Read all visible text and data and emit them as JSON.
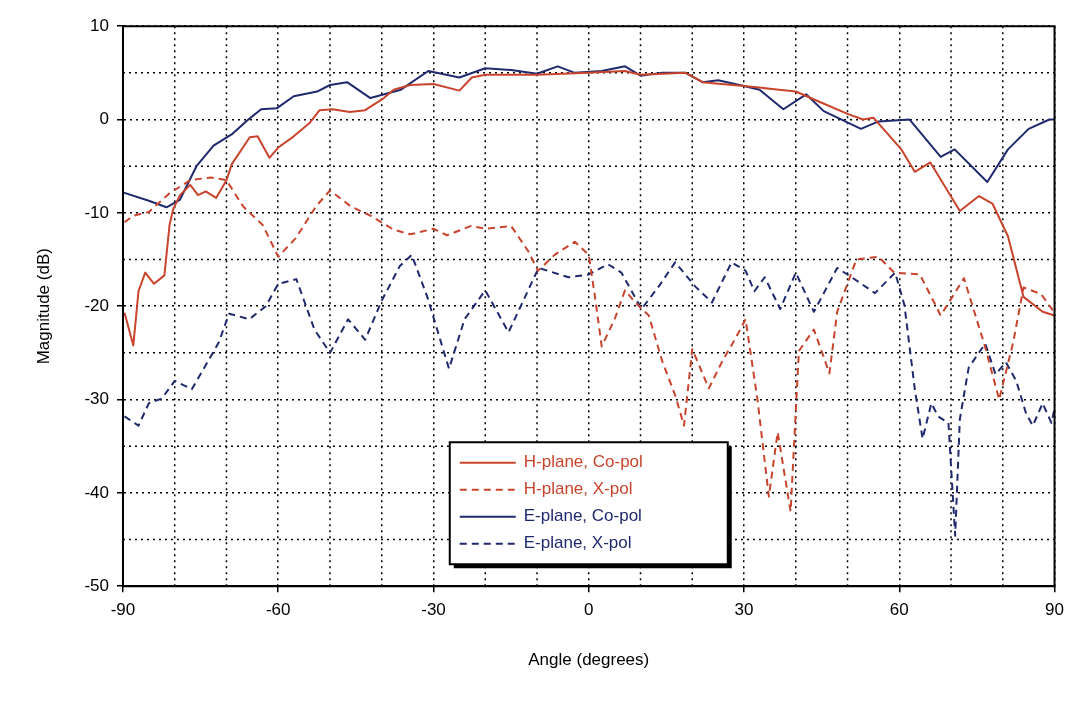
{
  "chart_data": {
    "type": "line",
    "xlabel": "Angle (degrees)",
    "ylabel": "Magnitude (dB)",
    "xlim": [
      -90,
      90
    ],
    "ylim": [
      -50,
      10
    ],
    "xticks": [
      -90,
      -60,
      -30,
      0,
      30,
      60,
      90
    ],
    "yticks": [
      -50,
      -40,
      -30,
      -20,
      -10,
      0,
      10
    ],
    "grid": true,
    "legend": "bottom",
    "series": [
      {
        "name": "H-plane, Co-pol",
        "color": "#c8442c",
        "line_style": "solid",
        "x": [
          -89.7,
          -88,
          -87,
          -85.7,
          -84,
          -82,
          -81,
          -80.3,
          -79,
          -77,
          -75.5,
          -74,
          -72,
          -70,
          -69,
          -65.5,
          -64,
          -61.7,
          -60,
          -57,
          -54,
          -52,
          -49.5,
          -46.2,
          -43.2,
          -39.6,
          -37.7,
          -34.5,
          -30,
          -25,
          -22.6,
          -20,
          -10,
          0,
          7,
          10,
          18.7,
          22,
          25.6,
          30,
          35,
          40,
          45,
          50,
          53,
          55,
          60.4,
          63,
          66,
          71.7,
          75.4,
          78,
          81,
          84,
          87.7,
          90
        ],
        "values": [
          -20.7,
          -24.2,
          -18.4,
          -16.4,
          -17.6,
          -16.7,
          -11.3,
          -9.6,
          -8.1,
          -7,
          -8.1,
          -7.7,
          -8.4,
          -6.5,
          -4.8,
          -1.9,
          -1.8,
          -4.1,
          -3,
          -1.8,
          -0.4,
          1,
          1.1,
          0.8,
          1,
          2.3,
          3.2,
          3.7,
          3.8,
          3.1,
          4.5,
          4.8,
          4.8,
          5,
          5.2,
          4.8,
          5,
          4,
          3.8,
          3.6,
          3.3,
          3,
          1.8,
          0.6,
          0,
          0.2,
          -3.2,
          -5.6,
          -4.6,
          -9.8,
          -8.2,
          -9,
          -12.5,
          -19,
          -20.6,
          -21
        ]
      },
      {
        "name": "H-plane, X-pol",
        "color": "#c8442c",
        "line_style": "dashed",
        "x": [
          -89.7,
          -88,
          -85,
          -81,
          -77,
          -73,
          -70,
          -66.8,
          -63,
          -60,
          -56.6,
          -52.7,
          -50,
          -46,
          -42.2,
          -37.7,
          -34.5,
          -30,
          -27.4,
          -22.7,
          -20,
          -15,
          -11.7,
          -9.8,
          -6.6,
          -2.7,
          0,
          1.2,
          2.5,
          5,
          7,
          9,
          11.6,
          14.2,
          16.8,
          18.4,
          20,
          23.2,
          25.8,
          28.4,
          30.3,
          32.6,
          34.8,
          36.5,
          39,
          40.6,
          43.5,
          46.5,
          48,
          51.7,
          56,
          59,
          64,
          68,
          72.5,
          76.5,
          79.3,
          82,
          84,
          87.4,
          90
        ],
        "values": [
          -11,
          -10.3,
          -9.9,
          -7.9,
          -6.5,
          -6.2,
          -6.5,
          -9.3,
          -11.3,
          -14.7,
          -12.7,
          -9.3,
          -7.6,
          -9.3,
          -10.3,
          -11.8,
          -12.3,
          -11.7,
          -12.4,
          -11.4,
          -11.7,
          -11.4,
          -14.1,
          -16.2,
          -14.5,
          -13.1,
          -14.5,
          -19,
          -24.3,
          -21.4,
          -18.3,
          -19.6,
          -21,
          -25.9,
          -29.7,
          -32.8,
          -24.6,
          -28.8,
          -25.9,
          -23.4,
          -21.4,
          -30,
          -40.4,
          -33.5,
          -42,
          -24.8,
          -22.5,
          -27.2,
          -20.6,
          -15,
          -14.7,
          -16.4,
          -16.6,
          -21,
          -17,
          -24.2,
          -30,
          -23.9,
          -18,
          -18.7,
          -20.7
        ]
      },
      {
        "name": "E-plane, Co-pol",
        "color": "#1f2a6e",
        "line_style": "solid",
        "x": [
          -90,
          -85,
          -81.6,
          -79,
          -75.8,
          -72.5,
          -69,
          -66,
          -63.3,
          -60.3,
          -57,
          -52.5,
          -50,
          -46.7,
          -42.2,
          -39.5,
          -36.3,
          -31,
          -25,
          -20,
          -15,
          -10,
          -6,
          -2.7,
          2.5,
          7,
          10,
          14,
          18.7,
          22,
          25,
          30,
          33,
          37.6,
          42,
          45.4,
          52.6,
          56,
          62,
          68,
          70.7,
          77,
          81,
          85,
          89,
          90
        ],
        "values": [
          -7.8,
          -8.7,
          -9.4,
          -8.6,
          -5,
          -2.8,
          -1.6,
          -0.1,
          1.1,
          1.2,
          2.5,
          3,
          3.7,
          4,
          2.3,
          2.7,
          3.2,
          5.2,
          4.5,
          5.5,
          5.3,
          4.9,
          5.7,
          5,
          5.2,
          5.7,
          4.7,
          5,
          5,
          4,
          4.2,
          3.6,
          3.2,
          1.1,
          2.7,
          0.9,
          -1,
          -0.2,
          0,
          -4,
          -3.2,
          -6.7,
          -3.2,
          -1,
          0,
          0
        ]
      },
      {
        "name": "E-plane, X-pol",
        "color": "#1f2a6e",
        "line_style": "dashed",
        "x": [
          -89.7,
          -87,
          -85,
          -82.5,
          -80,
          -76.7,
          -74,
          -71.5,
          -69.5,
          -65.6,
          -62.4,
          -60,
          -56.5,
          -53,
          -50,
          -46.5,
          -43.2,
          -40,
          -36.5,
          -34.2,
          -31.2,
          -27,
          -24,
          -20,
          -15.5,
          -9.7,
          -3.9,
          0,
          3.7,
          6.3,
          10.2,
          13.5,
          16.7,
          20.6,
          23.8,
          27.6,
          30.3,
          32,
          34,
          37,
          40,
          43.5,
          48,
          50.8,
          55.3,
          59.2,
          61,
          63,
          64.5,
          66.2,
          67.5,
          69.5,
          70.8,
          71.7,
          73.4,
          76.6,
          78.6,
          80.6,
          82.6,
          84.5,
          85.8,
          87.7,
          89.4,
          90
        ],
        "values": [
          -31.8,
          -32.8,
          -30.4,
          -29.9,
          -28,
          -28.9,
          -26.3,
          -23.9,
          -20.8,
          -21.4,
          -20,
          -17.6,
          -17.1,
          -22.5,
          -25,
          -21.4,
          -23.6,
          -19.4,
          -15.7,
          -14.5,
          -19,
          -26.7,
          -21.4,
          -18.3,
          -22.8,
          -15.9,
          -16.9,
          -16.6,
          -15.5,
          -16.4,
          -20.3,
          -17.9,
          -15.3,
          -17.9,
          -19.6,
          -15.3,
          -16.2,
          -18.4,
          -16.9,
          -20.3,
          -16.4,
          -20.6,
          -15.9,
          -16.9,
          -18.6,
          -16.4,
          -19.9,
          -28.9,
          -34.2,
          -30.4,
          -31.8,
          -32.5,
          -44.6,
          -32.1,
          -26.6,
          -24,
          -27.3,
          -26,
          -28,
          -31.5,
          -32.8,
          -30.4,
          -32.5,
          -31
        ]
      }
    ]
  }
}
